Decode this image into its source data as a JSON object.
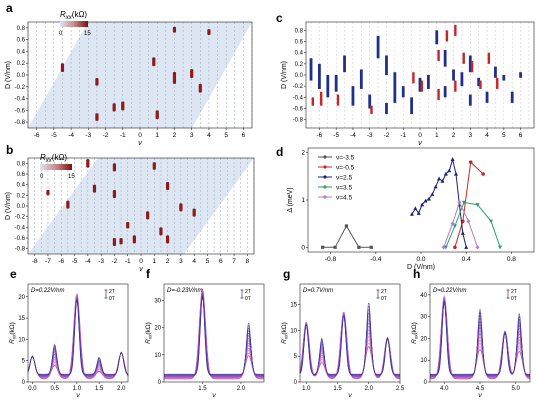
{
  "colors": {
    "red": "#8e1a1a",
    "blue": "#1f2f8a",
    "map_bg": "#dde6f3",
    "purple": "#7c3f7a"
  },
  "panels": {
    "a": {
      "label": "a",
      "cbar_title": "R",
      "cbar_sub": "xx",
      "cbar_unit": "(kΩ)",
      "cbar_ticks": [
        "0",
        "15"
      ],
      "ylabel": "D (V/nm)",
      "xlabel": "ν",
      "xticks": [
        "-6",
        "-5",
        "-4",
        "-3",
        "-2",
        "-1",
        "0",
        "1",
        "2",
        "3",
        "4",
        "5",
        "6"
      ],
      "yticks": [
        "0.8",
        "0.6",
        "0.4",
        "0.2",
        "0.0",
        "-0.2",
        "-0.4",
        "-0.6",
        "-0.8"
      ]
    },
    "b": {
      "label": "b",
      "cbar_title": "R",
      "cbar_sub": "xx",
      "cbar_unit": "(kΩ)",
      "cbar_ticks": [
        "0",
        "15"
      ],
      "ylabel": "D (V/nm)",
      "xlabel": "ν",
      "xticks": [
        "-8",
        "-7",
        "-6",
        "-5",
        "-4",
        "-3",
        "-2",
        "-1",
        "0",
        "1",
        "2",
        "3",
        "4",
        "5",
        "6",
        "7",
        "8"
      ],
      "yticks": [
        "0.8",
        "0.6",
        "0.4",
        "0.2",
        "0.0",
        "-0.2",
        "-0.4",
        "-0.6",
        "-0.8"
      ]
    },
    "c": {
      "label": "c",
      "ylabel": "D (V/nm)",
      "xlabel": "ν",
      "xticks": [
        "-6",
        "-5",
        "-4",
        "-3",
        "-2",
        "-1",
        "0",
        "1",
        "2",
        "3",
        "4",
        "5",
        "6"
      ],
      "yticks": [
        "0.8",
        "0.6",
        "0.4",
        "0.2",
        "0.0",
        "-0.2",
        "-0.4",
        "-0.6",
        "-0.8"
      ]
    },
    "d": {
      "label": "d",
      "ylabel": "Δ (meV)",
      "xlabel": "D (V/nm)",
      "xticks": [
        "-0.8",
        "-0.4",
        "0.0",
        "0.4",
        "0.8"
      ],
      "yticks": [
        "0",
        "1",
        "2"
      ],
      "legend": [
        "ν=-3.5",
        "ν=-0.5",
        "ν=2.5",
        "ν=3.5",
        "ν=4.5"
      ]
    },
    "e": {
      "label": "e",
      "annot": "D=0.22V/nm",
      "legend_top": "2T",
      "legend_bot": "0T",
      "ylabel": "R",
      "ysub": "xx",
      "yunit": "(kΩ)",
      "xlabel": "ν",
      "xticks": [
        "0.0",
        "0.5",
        "1.0",
        "1.5",
        "2.0"
      ],
      "yticks": [
        "0",
        "5",
        "10",
        "15",
        "20"
      ]
    },
    "f": {
      "label": "f",
      "annot": "D=-0.23V/nm",
      "legend_top": "2T",
      "legend_bot": "0T",
      "ylabel": "R",
      "ysub": "xx",
      "yunit": "(kΩ)",
      "xlabel": "ν",
      "xticks": [
        "1.5",
        "2.0"
      ],
      "yticks": [
        "0",
        "10",
        "20",
        "30"
      ]
    },
    "g": {
      "label": "g",
      "annot": "D=0.7V/nm",
      "legend_top": "2T",
      "legend_bot": "0T",
      "ylabel": "R",
      "ysub": "xx",
      "yunit": "(kΩ)",
      "xlabel": "ν",
      "xticks": [
        "1.0",
        "1.5",
        "2.0",
        "2.5"
      ],
      "yticks": [
        "0",
        "5",
        "10",
        "15"
      ]
    },
    "h": {
      "label": "h",
      "annot": "D=0.22V/nm",
      "legend_top": "2T",
      "legend_bot": "0T",
      "ylabel": "R",
      "ysub": "xx",
      "yunit": "(kΩ)",
      "xlabel": "ν",
      "xticks": [
        "4.0",
        "4.5",
        "5.0"
      ],
      "yticks": [
        "0",
        "10",
        "20",
        "30",
        "40"
      ]
    }
  },
  "chart_data": [
    {
      "panel": "a",
      "type": "heatmap",
      "x_range": [
        -6.5,
        6.5
      ],
      "y_range": [
        -0.9,
        0.9
      ],
      "features": [
        {
          "nu": 2.0,
          "d0": 0.82,
          "d1": 0.72
        },
        {
          "nu": 4.0,
          "d0": 0.78,
          "d1": 0.68
        },
        {
          "nu": -4.5,
          "d0": 0.2,
          "d1": 0.05
        },
        {
          "nu": 0.8,
          "d0": 0.3,
          "d1": 0.15
        },
        {
          "nu": 3.0,
          "d0": 0.1,
          "d1": -0.05
        },
        {
          "nu": 2.0,
          "d0": 0.05,
          "d1": -0.15
        },
        {
          "nu": -2.5,
          "d0": -0.05,
          "d1": -0.18
        },
        {
          "nu": 3.5,
          "d0": -0.15,
          "d1": -0.3
        },
        {
          "nu": -1.0,
          "d0": -0.45,
          "d1": -0.6
        },
        {
          "nu": -1.5,
          "d0": -0.48,
          "d1": -0.62
        },
        {
          "nu": -2.5,
          "d0": -0.65,
          "d1": -0.78
        },
        {
          "nu": 1.0,
          "d0": -0.6,
          "d1": -0.75
        }
      ]
    },
    {
      "panel": "b",
      "type": "heatmap",
      "x_range": [
        -8.5,
        8.5
      ],
      "y_range": [
        -0.9,
        0.9
      ],
      "features": [
        {
          "nu": -4.0,
          "d0": 0.88,
          "d1": 0.72
        },
        {
          "nu": -2.0,
          "d0": 0.8,
          "d1": 0.65
        },
        {
          "nu": 1.0,
          "d0": 0.82,
          "d1": 0.68
        },
        {
          "nu": -3.5,
          "d0": 0.4,
          "d1": 0.25
        },
        {
          "nu": -2.0,
          "d0": 0.3,
          "d1": 0.15
        },
        {
          "nu": 2.0,
          "d0": 0.45,
          "d1": 0.3
        },
        {
          "nu": 3.0,
          "d0": 0.05,
          "d1": -0.1
        },
        {
          "nu": 4.0,
          "d0": -0.05,
          "d1": -0.2
        },
        {
          "nu": -5.5,
          "d0": 0.1,
          "d1": -0.05
        },
        {
          "nu": -7.0,
          "d0": 0.3,
          "d1": 0.2
        },
        {
          "nu": 0.5,
          "d0": -0.1,
          "d1": -0.25
        },
        {
          "nu": -1.0,
          "d0": -0.3,
          "d1": -0.42
        },
        {
          "nu": 1.5,
          "d0": -0.4,
          "d1": -0.55
        },
        {
          "nu": -0.5,
          "d0": -0.55,
          "d1": -0.7
        },
        {
          "nu": 2.0,
          "d0": -0.55,
          "d1": -0.7
        },
        {
          "nu": -2.0,
          "d0": -0.6,
          "d1": -0.75
        },
        {
          "nu": -1.5,
          "d0": -0.6,
          "d1": -0.72
        }
      ]
    },
    {
      "panel": "c",
      "type": "scatter",
      "x_range": [
        -6.8,
        6.8
      ],
      "y_range": [
        -0.95,
        0.95
      ],
      "blue": [
        [
          -6.5,
          0.3,
          -0.1
        ],
        [
          -6.0,
          0.2,
          -0.25
        ],
        [
          -5.5,
          0.0,
          -0.4
        ],
        [
          -5.0,
          0.0,
          -0.3
        ],
        [
          -4.5,
          0.35,
          0.05
        ],
        [
          -4.0,
          -0.2,
          -0.55
        ],
        [
          -3.5,
          0.1,
          -0.25
        ],
        [
          -3.0,
          -0.35,
          -0.6
        ],
        [
          -2.5,
          0.7,
          0.3
        ],
        [
          -2.0,
          0.35,
          0.0
        ],
        [
          -1.5,
          0.05,
          -0.5
        ],
        [
          -1.0,
          -0.2,
          -0.4
        ],
        [
          -0.5,
          -0.4,
          -0.7
        ],
        [
          0.0,
          -0.05,
          -0.3
        ],
        [
          0.5,
          0.0,
          -0.25
        ],
        [
          1.0,
          0.8,
          0.55
        ],
        [
          1.5,
          0.45,
          0.15
        ],
        [
          2.0,
          0.1,
          -0.1
        ],
        [
          2.5,
          0.05,
          -0.2
        ],
        [
          3.0,
          0.35,
          0.05
        ],
        [
          3.5,
          -0.05,
          -0.2
        ],
        [
          4.0,
          -0.3,
          -0.5
        ],
        [
          4.5,
          0.15,
          -0.05
        ],
        [
          5.0,
          0.0,
          -0.1
        ],
        [
          5.5,
          -0.3,
          -0.5
        ],
        [
          6.0,
          0.05,
          -0.05
        ],
        [
          1.5,
          -0.2,
          -0.4
        ],
        [
          -2.0,
          -0.5,
          -0.7
        ],
        [
          3.0,
          -0.35,
          -0.55
        ]
      ],
      "red": [
        [
          -6.5,
          -0.4,
          -0.55
        ],
        [
          -6.0,
          -0.3,
          -0.55
        ],
        [
          -5.0,
          -0.35,
          -0.55
        ],
        [
          -3.0,
          -0.55,
          -0.7
        ],
        [
          -0.5,
          0.05,
          -0.15
        ],
        [
          0.0,
          -0.1,
          -0.3
        ],
        [
          1.0,
          0.45,
          0.25
        ],
        [
          1.5,
          0.8,
          0.6
        ],
        [
          2.0,
          0.9,
          0.7
        ],
        [
          2.5,
          0.4,
          0.2
        ],
        [
          3.0,
          0.25,
          0.05
        ],
        [
          3.5,
          -0.1,
          -0.25
        ],
        [
          4.0,
          0.4,
          0.2
        ],
        [
          4.5,
          -0.05,
          -0.25
        ],
        [
          2.0,
          -0.1,
          -0.3
        ],
        [
          1.0,
          -0.25,
          -0.45
        ]
      ]
    },
    {
      "panel": "d",
      "type": "line",
      "xlim": [
        -1.0,
        1.0
      ],
      "ylim": [
        -0.1,
        2.1
      ],
      "series": [
        {
          "name": "ν=-3.5",
          "x": [
            -0.87,
            -0.76,
            -0.66,
            -0.55,
            -0.44
          ],
          "y": [
            0.0,
            0.0,
            0.45,
            0.0,
            0.0
          ]
        },
        {
          "name": "ν=-0.5",
          "x": [
            0.3,
            0.37,
            0.44,
            0.55
          ],
          "y": [
            0.0,
            0.55,
            1.8,
            1.55
          ]
        },
        {
          "name": "ν=2.5",
          "x": [
            -0.08,
            -0.05,
            -0.02,
            0.01,
            0.04,
            0.07,
            0.1,
            0.13,
            0.16,
            0.19,
            0.22,
            0.25,
            0.28,
            0.31,
            0.34,
            0.37,
            0.4
          ],
          "y": [
            0.7,
            0.82,
            0.72,
            0.9,
            0.98,
            1.02,
            1.12,
            1.28,
            1.45,
            1.4,
            1.55,
            1.62,
            1.86,
            1.55,
            0.9,
            0.3,
            0.0
          ]
        },
        {
          "name": "ν=3.5",
          "x": [
            0.22,
            0.3,
            0.38,
            0.5,
            0.62,
            0.7
          ],
          "y": [
            0.0,
            0.45,
            0.95,
            0.9,
            0.55,
            0.0
          ]
        },
        {
          "name": "ν=4.5",
          "x": [
            0.2,
            0.28,
            0.34,
            0.42,
            0.5
          ],
          "y": [
            0.0,
            0.5,
            0.95,
            0.55,
            0.0
          ]
        }
      ]
    },
    {
      "panel": "e",
      "type": "line",
      "annot": "D=0.22V/nm",
      "xlim": [
        -0.1,
        2.15
      ],
      "ylim": [
        0,
        23
      ],
      "peaks": [
        {
          "x": 0.0,
          "h": 5
        },
        {
          "x": 0.5,
          "h": 7
        },
        {
          "x": 1.0,
          "h": 20
        },
        {
          "x": 1.5,
          "h": 4
        },
        {
          "x": 2.0,
          "h": 6
        }
      ]
    },
    {
      "panel": "f",
      "type": "line",
      "annot": "D=-0.23V/nm",
      "xlim": [
        1.0,
        2.3
      ],
      "ylim": [
        0,
        36
      ],
      "peaks": [
        {
          "x": 1.5,
          "h": 33
        },
        {
          "x": 2.1,
          "h": 19
        }
      ]
    },
    {
      "panel": "g",
      "type": "line",
      "annot": "D=0.7V/nm",
      "xlim": [
        0.9,
        2.5
      ],
      "ylim": [
        0,
        19
      ],
      "peaks": [
        {
          "x": 1.0,
          "h": 11
        },
        {
          "x": 1.25,
          "h": 7
        },
        {
          "x": 1.6,
          "h": 13
        },
        {
          "x": 2.0,
          "h": 14
        },
        {
          "x": 2.3,
          "h": 8
        }
      ]
    },
    {
      "panel": "h",
      "type": "line",
      "annot": "D=0.22V/nm",
      "xlim": [
        3.8,
        5.2
      ],
      "ylim": [
        0,
        45
      ],
      "peaks": [
        {
          "x": 4.0,
          "h": 38
        },
        {
          "x": 4.5,
          "h": 30
        },
        {
          "x": 4.85,
          "h": 22
        },
        {
          "x": 5.05,
          "h": 28
        }
      ]
    }
  ]
}
